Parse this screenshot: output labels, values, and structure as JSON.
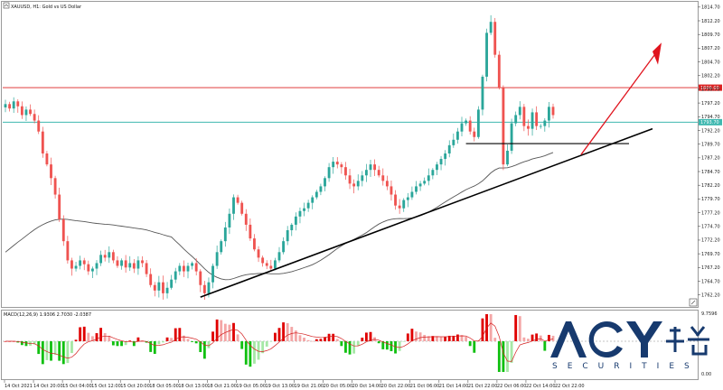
{
  "chart_data": {
    "type": "candlestick",
    "symbol_title": "XAUUSD, H1:  Gold vs US Dollar",
    "macd_title": "MACD(12,26,9) 1.9306 2.7030 -2.0387",
    "y_ticks": [
      "1814.70",
      "1812.20",
      "1809.70",
      "1807.20",
      "1804.70",
      "1802.20",
      "1799.70",
      "1797.20",
      "1794.70",
      "1792.20",
      "1789.70",
      "1787.20",
      "1784.70",
      "1782.20",
      "1779.70",
      "1777.20",
      "1774.70",
      "1772.20",
      "1769.70",
      "1767.20",
      "1764.70",
      "1762.20",
      "1759.70"
    ],
    "price_line_red": {
      "value": 1800.0,
      "label": "1800.00"
    },
    "price_line_cyan": {
      "value": 1793.7,
      "label": "1793.70"
    },
    "macd_ticks": [
      "9.7596",
      "0.00"
    ],
    "x_ticks": [
      "14 Oct 2021",
      "14 Oct 20:00",
      "15 Oct 04:00",
      "15 Oct 12:00",
      "15 Oct 20:00",
      "18 Oct 05:00",
      "18 Oct 13:00",
      "18 Oct 21:00",
      "19 Oct 05:00",
      "19 Oct 13:00",
      "19 Oct 21:00",
      "20 Oct 05:00",
      "20 Oct 14:00",
      "20 Oct 22:00",
      "21 Oct 06:00",
      "21 Oct 14:00",
      "21 Oct 22:00",
      "22 Oct 06:00",
      "22 Oct 14:00",
      "22 Oct 22:00"
    ],
    "y_range": [
      1760.5,
      1815.0
    ],
    "colors": {
      "up": "#2aa69a",
      "down": "#ef5350",
      "ma": "#555555",
      "trend": "#000000",
      "arrow": "#e0141e",
      "macd_pos_strong": "#e00000",
      "macd_pos_weak": "#f4a6a6",
      "macd_neg_strong": "#10c010",
      "macd_neg_weak": "#a6e8a6",
      "signal": "#d42020"
    },
    "closes": [
      1797.0,
      1796.2,
      1797.5,
      1796.6,
      1795.0,
      1796.0,
      1795.2,
      1794.0,
      1792.0,
      1788.0,
      1786.0,
      1783.5,
      1780.5,
      1776.0,
      1772.0,
      1768.5,
      1767.0,
      1767.5,
      1768.5,
      1767.8,
      1766.5,
      1767.0,
      1768.0,
      1769.5,
      1769.0,
      1770.0,
      1768.5,
      1767.5,
      1768.5,
      1767.2,
      1768.0,
      1767.0,
      1768.5,
      1768.0,
      1766.0,
      1764.0,
      1763.0,
      1764.5,
      1762.5,
      1763.5,
      1765.0,
      1766.5,
      1767.5,
      1766.5,
      1767.5,
      1768.0,
      1766.5,
      1764.0,
      1762.5,
      1764.5,
      1767.5,
      1770.0,
      1772.0,
      1774.5,
      1777.0,
      1780.0,
      1779.0,
      1777.0,
      1775.0,
      1772.5,
      1770.5,
      1769.0,
      1768.0,
      1767.5,
      1767.0,
      1768.5,
      1770.0,
      1772.0,
      1774.0,
      1775.0,
      1776.5,
      1777.5,
      1778.0,
      1779.0,
      1780.0,
      1781.0,
      1782.0,
      1783.5,
      1785.5,
      1786.5,
      1786.0,
      1785.5,
      1784.0,
      1782.5,
      1782.0,
      1783.0,
      1784.0,
      1785.0,
      1786.0,
      1785.0,
      1784.0,
      1783.0,
      1782.0,
      1780.5,
      1778.5,
      1778.0,
      1779.5,
      1780.0,
      1781.0,
      1782.0,
      1782.5,
      1783.0,
      1784.0,
      1785.0,
      1786.0,
      1787.0,
      1788.0,
      1789.5,
      1790.5,
      1792.0,
      1793.5,
      1794.0,
      1792.0,
      1791.0,
      1796.0,
      1802.0,
      1810.0,
      1812.0,
      1806.0,
      1800.0,
      1786.0,
      1788.5,
      1793.5,
      1795.0,
      1796.5,
      1793.0,
      1792.5,
      1795.5,
      1793.0,
      1793.0,
      1794.0,
      1796.5,
      1795.0
    ]
  }
}
